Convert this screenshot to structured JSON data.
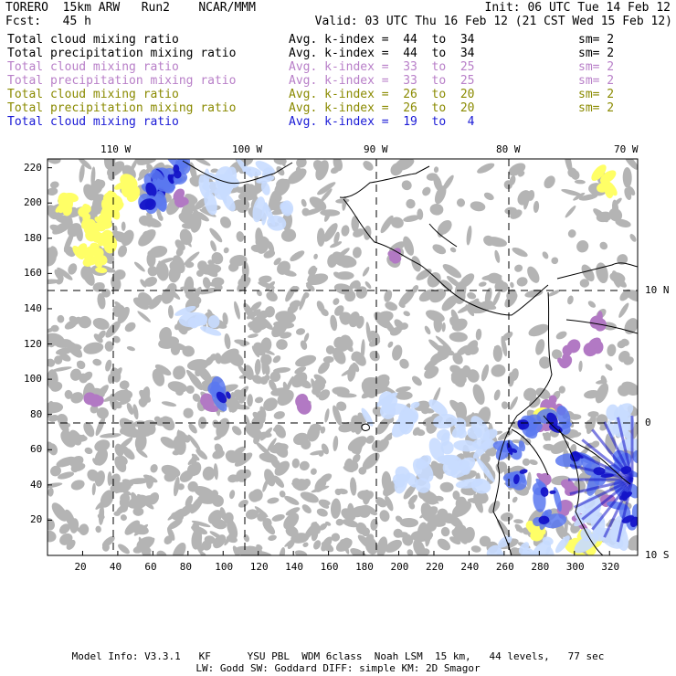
{
  "header": {
    "model": "TORERO  15km ARW   Run2    NCAR/MMM",
    "init": "Init: 06 UTC Tue 14 Feb 12",
    "fcst": "Fcst:   45 h",
    "valid": "Valid: 03 UTC Thu 16 Feb 12 (21 CST Wed 15 Feb 12)"
  },
  "legend": [
    {
      "field": "Total cloud mixing ratio",
      "index": "Avg. k-index =  44  to  34",
      "sm": "sm= 2",
      "color": "#000000"
    },
    {
      "field": "Total precipitation mixing ratio",
      "index": "Avg. k-index =  44  to  34",
      "sm": "sm= 2",
      "color": "#000000"
    },
    {
      "field": "Total cloud mixing ratio",
      "index": "Avg. k-index =  33  to  25",
      "sm": "sm= 2",
      "color": "#b87fc8"
    },
    {
      "field": "Total precipitation mixing ratio",
      "index": "Avg. k-index =  33  to  25",
      "sm": "sm= 2",
      "color": "#b87fc8"
    },
    {
      "field": "Total cloud mixing ratio",
      "index": "Avg. k-index =  26  to  20",
      "sm": "sm= 2",
      "color": "#8a8a00"
    },
    {
      "field": "Total precipitation mixing ratio",
      "index": "Avg. k-index =  26  to  20",
      "sm": "sm= 2",
      "color": "#8a8a00"
    },
    {
      "field": "Total cloud mixing ratio",
      "index": "Avg. k-index =  19  to   4",
      "sm": "",
      "color": "#1a1ad6"
    }
  ],
  "map": {
    "lon_labels": [
      "110 W",
      "100 W",
      "90 W",
      "80 W",
      "70 W"
    ],
    "lat_labels": [
      "10 N",
      "0",
      "10 S"
    ],
    "x_ticks": [
      "20",
      "40",
      "60",
      "80",
      "100",
      "120",
      "140",
      "160",
      "180",
      "200",
      "220",
      "240",
      "260",
      "280",
      "300",
      "320"
    ],
    "y_ticks": [
      "220",
      "200",
      "180",
      "160",
      "140",
      "120",
      "100",
      "80",
      "60",
      "40",
      "20"
    ],
    "colors": {
      "cloud": "#b4b4b4",
      "precip_violet": "#b279c4",
      "yellow": "#ffff66",
      "blue_dark": "#1414c8",
      "blue_mid": "#5a78f0",
      "blue_light": "#c8dcff",
      "coast": "#000000"
    }
  },
  "footer": {
    "line1": "Model Info: V3.3.1   KF      YSU PBL  WDM 6class  Noah LSM  15 km,   44 levels,   77 sec",
    "line2": "LW: Godd SW: Goddard DIFF: simple KM: 2D Smagor"
  }
}
